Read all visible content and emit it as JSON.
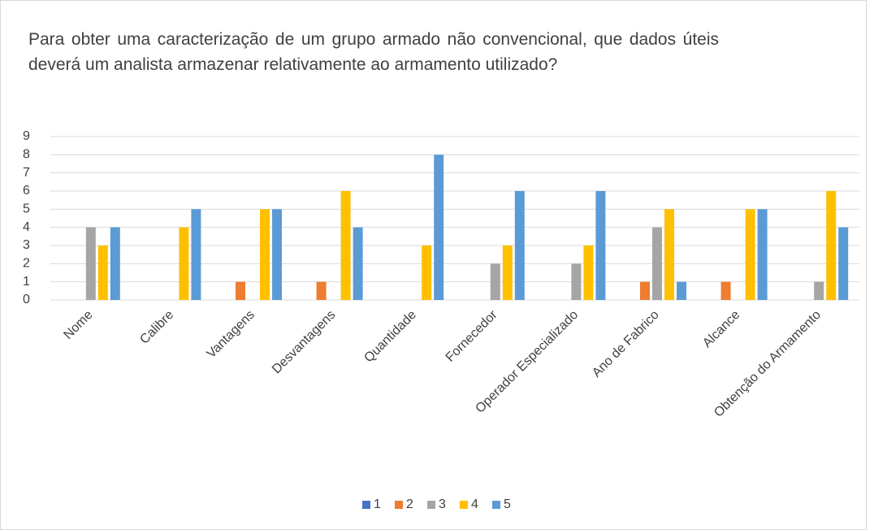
{
  "chart_data": {
    "type": "bar",
    "title": "Para obter uma caracterização de um grupo armado não convencional, que dados úteis deverá um analista armazenar relativamente ao armamento utilizado?",
    "categories": [
      "Nome",
      "Calibre",
      "Vantagens",
      "Desvantagens",
      "Quantidade",
      "Fornecedor",
      "Operador Especializado",
      "Ano de Fabrico",
      "Alcance",
      "Obtenção do Armamento"
    ],
    "series": [
      {
        "name": "1",
        "color": "#4472c4",
        "values": [
          0,
          0,
          0,
          0,
          0,
          0,
          0,
          0,
          0,
          0
        ]
      },
      {
        "name": "2",
        "color": "#ed7d31",
        "values": [
          0,
          0,
          1,
          1,
          0,
          0,
          0,
          1,
          1,
          0
        ]
      },
      {
        "name": "3",
        "color": "#a5a5a5",
        "values": [
          4,
          0,
          0,
          0,
          0,
          2,
          2,
          4,
          0,
          1
        ]
      },
      {
        "name": "4",
        "color": "#ffc000",
        "values": [
          3,
          4,
          5,
          6,
          3,
          3,
          3,
          5,
          5,
          6
        ]
      },
      {
        "name": "5",
        "color": "#5b9bd5",
        "values": [
          4,
          5,
          5,
          4,
          8,
          6,
          6,
          1,
          5,
          4
        ]
      }
    ],
    "ylim": [
      0,
      9
    ],
    "yticks": [
      0,
      1,
      2,
      3,
      4,
      5,
      6,
      7,
      8,
      9
    ],
    "grid": true,
    "legend": "bottom"
  }
}
